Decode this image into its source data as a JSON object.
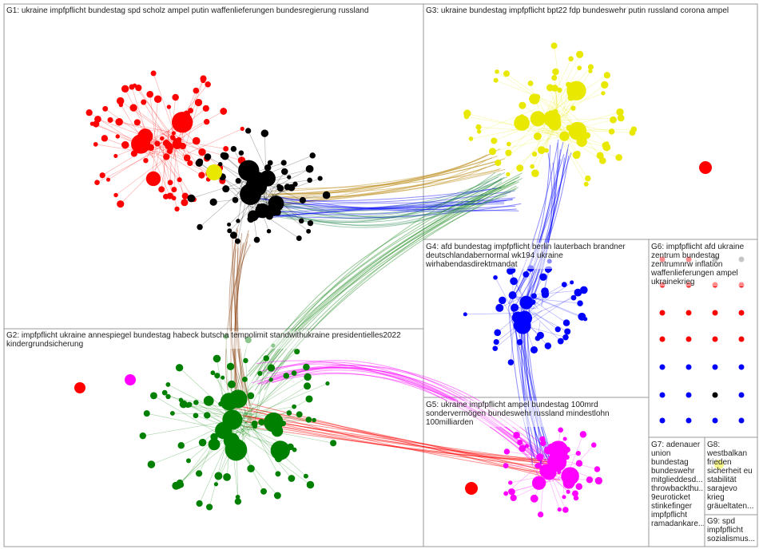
{
  "groups": [
    {
      "label": "G1: ukraine impfpflicht bundestag spd scholz ampel putin waffenlieferungen bundesregierung russland"
    },
    {
      "label": "G2: impfpflicht ukraine annespiegel bundestag habeck butscha tempolimit standwithukraine presidentielles2022 kindergrundsicherung"
    },
    {
      "label": "G3: ukraine bundestag impfpflicht bpt22 fdp bundeswehr putin russland corona ampel"
    },
    {
      "label": "G4: afd bundestag impfpflicht berlin lauterbach brandner deutschlandabernormal wk194 ukraine wirhabendasdirektmandat"
    },
    {
      "label": "G5: ukraine impfpflicht ampel bundestag 100mrd sondervermögen bundeswehr russland mindestlohn 100milliarden"
    },
    {
      "label": "G6: impfpflicht afd ukraine zentrum bundestag zentrumnrw inflation waffenlieferungen ampel ukrainekrieg"
    },
    {
      "label": "G7: adenauer union bundestag bundeswehr mitglieddesd... throwbackthu... 9euroticket stinkefinger impfpflicht ramadankare..."
    },
    {
      "label": "G8: westbalkan frieden sicherheit eu stabilität sarajevo krieg gräueltaten..."
    },
    {
      "label": "G9: spd impfpflicht sozialismus..."
    }
  ]
}
